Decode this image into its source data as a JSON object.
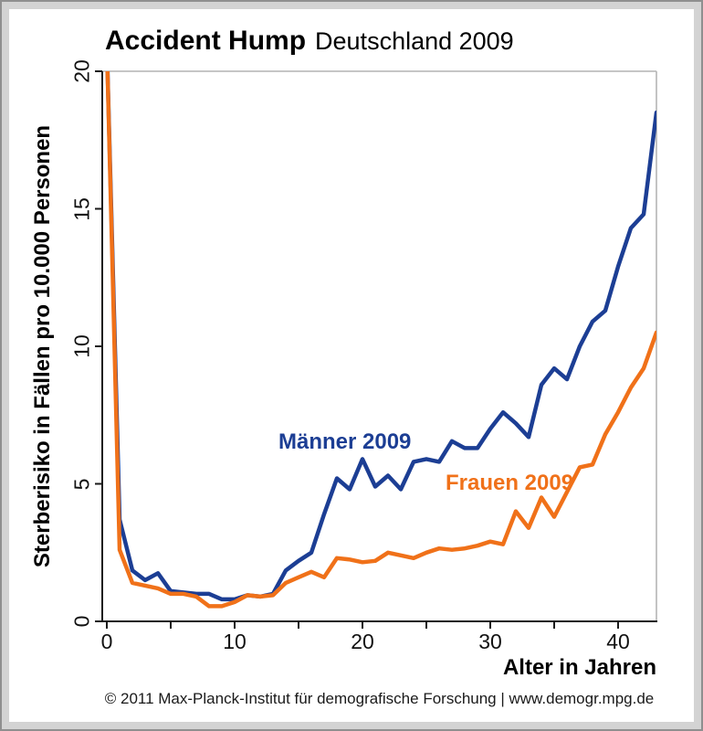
{
  "title": {
    "main": "Accident Hump",
    "sub": "Deutschland 2009"
  },
  "footer": "© 2011 Max-Planck-Institut für demografische Forschung | www.demogr.mpg.de",
  "colors": {
    "maenner_blue": "#1c3e94",
    "frauen_orange": "#f07119",
    "axis": "#1a1a1a",
    "plot_border_gray": "#b4b4b4",
    "frame_band_gray": "#d3d3d3",
    "frame_edge_gray": "#8f8f8f"
  },
  "chart_data": {
    "type": "line",
    "title": "Accident Hump Deutschland 2009",
    "xlabel": "Alter in Jahren",
    "ylabel": "Sterberisiko in Fällen pro 10.000 Personen",
    "xlim": [
      0,
      43
    ],
    "ylim": [
      0,
      20
    ],
    "x_ticks_labeled": [
      0,
      10,
      20,
      30,
      40
    ],
    "x_ticks_minor": [
      5,
      15,
      25,
      35
    ],
    "y_ticks": [
      0,
      5,
      10,
      15,
      20
    ],
    "grid": false,
    "legend_position": "inline-annotations",
    "clip_note": "values at age 0 exceed the y-axis maximum of 20 and are clipped at the plot top",
    "x": [
      0,
      1,
      2,
      3,
      4,
      5,
      6,
      7,
      8,
      9,
      10,
      11,
      12,
      13,
      14,
      15,
      16,
      17,
      18,
      19,
      20,
      21,
      22,
      23,
      24,
      25,
      26,
      27,
      28,
      29,
      30,
      31,
      32,
      33,
      34,
      35,
      36,
      37,
      38,
      39,
      40,
      41,
      42,
      43
    ],
    "series": [
      {
        "name": "Männer 2009",
        "color": "#1c3e94",
        "values": [
          21,
          3.7,
          1.85,
          1.5,
          1.75,
          1.1,
          1.05,
          1.0,
          1.0,
          0.8,
          0.8,
          0.95,
          0.9,
          1.0,
          1.85,
          2.2,
          2.5,
          3.9,
          5.2,
          4.8,
          5.9,
          4.9,
          5.3,
          4.8,
          5.8,
          5.9,
          5.8,
          6.55,
          6.3,
          6.3,
          7.0,
          7.6,
          7.2,
          6.7,
          8.6,
          9.2,
          8.8,
          10.0,
          10.9,
          11.3,
          12.9,
          14.3,
          14.8,
          18.5
        ]
      },
      {
        "name": "Frauen 2009",
        "color": "#f07119",
        "values": [
          21,
          2.6,
          1.4,
          1.3,
          1.2,
          1.0,
          1.0,
          0.9,
          0.55,
          0.55,
          0.7,
          0.95,
          0.9,
          0.95,
          1.4,
          1.6,
          1.8,
          1.6,
          2.3,
          2.25,
          2.15,
          2.2,
          2.5,
          2.4,
          2.3,
          2.5,
          2.65,
          2.6,
          2.65,
          2.75,
          2.9,
          2.8,
          4.0,
          3.4,
          4.5,
          3.8,
          4.7,
          5.6,
          5.7,
          6.8,
          7.6,
          8.5,
          9.2,
          10.5
        ]
      }
    ],
    "annotations": [
      {
        "text": "Männer 2009",
        "color": "#1c3e94"
      },
      {
        "text": "Frauen 2009",
        "color": "#f07119"
      }
    ]
  }
}
